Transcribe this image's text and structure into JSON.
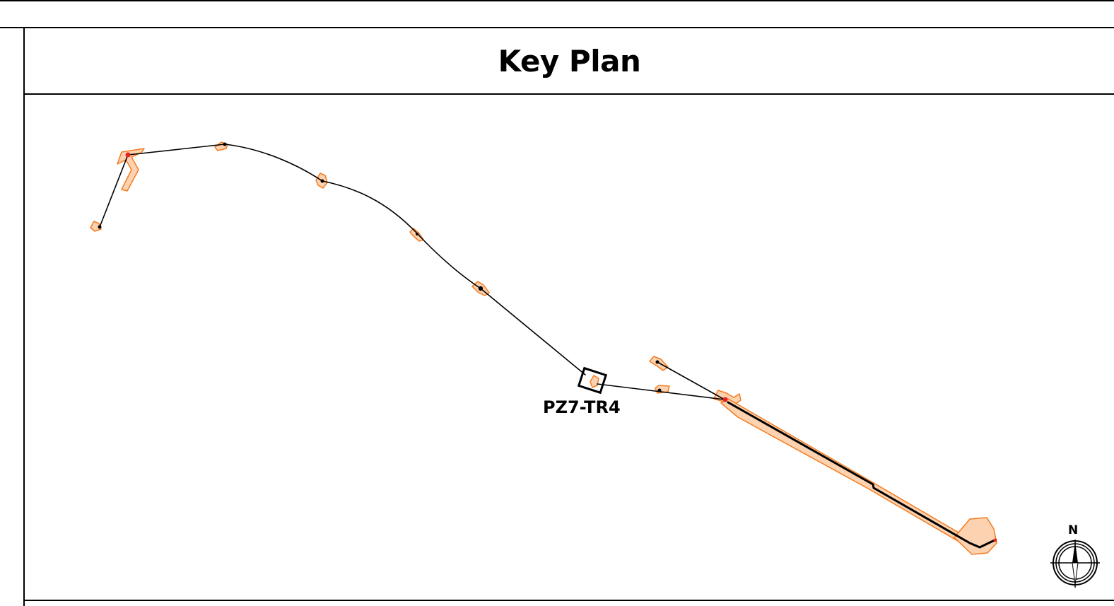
{
  "title": "Key Plan",
  "callout_label": "PZ7-TR4",
  "north_arrow": {
    "label": "N"
  },
  "colors": {
    "route_line": "#000000",
    "work_area_fill": "#fcd2b0",
    "work_area_stroke": "#f47b20",
    "marker_red": "#e8231d",
    "frame": "#000000"
  }
}
